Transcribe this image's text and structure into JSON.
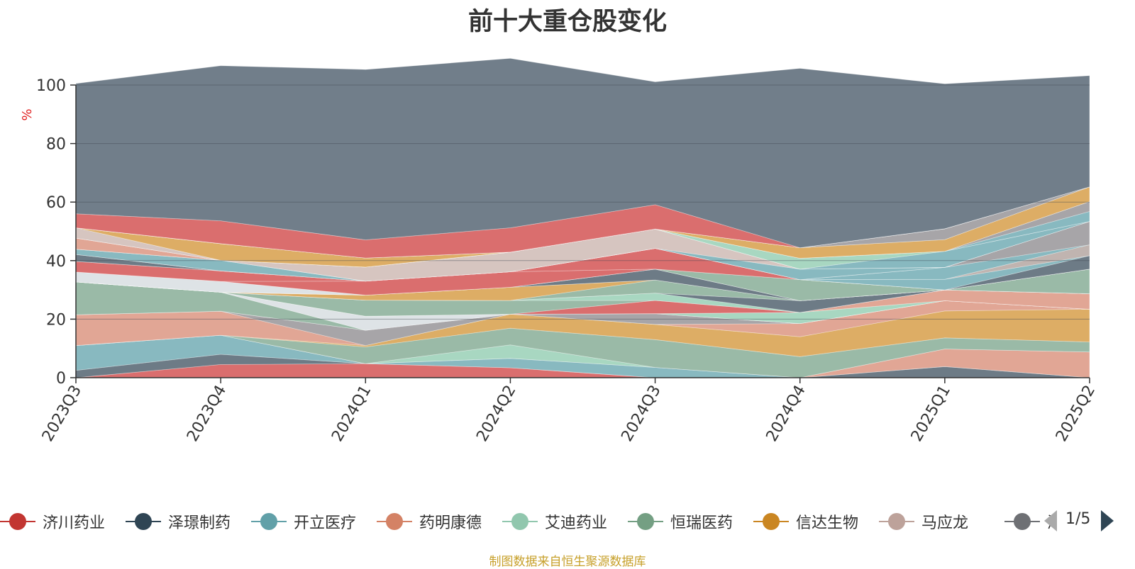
{
  "title": "前十大重仓股变化",
  "footer": "制图数据来自恒生聚源数据库",
  "colors": {
    "ylabel": "#e02020",
    "footer": "#c7a02a",
    "other_area": "#6e7b88",
    "pager_active": "#2f4554",
    "pager_inactive": "#aaaaaa"
  },
  "legend": {
    "page_text": "1/5",
    "items": [
      {
        "label": "济川药业",
        "color": "#c23531"
      },
      {
        "label": "泽璟制药",
        "color": "#2f4554"
      },
      {
        "label": "开立医疗",
        "color": "#61a0a8"
      },
      {
        "label": "药明康德",
        "color": "#d48265"
      },
      {
        "label": "艾迪药业",
        "color": "#91c7ae"
      },
      {
        "label": "恒瑞医药",
        "color": "#749f83"
      },
      {
        "label": "信达生物",
        "color": "#ca8622"
      },
      {
        "label": "马应龙",
        "color": "#bda29a"
      },
      {
        "label": "海思科",
        "color": "#6e7074"
      }
    ]
  },
  "chart_data": {
    "type": "area",
    "stacked": true,
    "ylabel": "%",
    "ylim": [
      0,
      100
    ],
    "yticks": [
      0,
      20,
      40,
      60,
      80,
      100
    ],
    "grid": true,
    "legend_position": "bottom",
    "categories": [
      "2023Q3",
      "2023Q4",
      "2024Q1",
      "2024Q2",
      "2024Q3",
      "2024Q4",
      "2025Q1",
      "2025Q2"
    ],
    "series": [
      {
        "values": [
          0,
          4.5,
          4.8,
          3.4,
          0,
          0,
          0,
          0
        ],
        "color": "#d96b6b"
      },
      {
        "values": [
          2.5,
          3.5,
          0,
          0,
          0,
          0,
          3.8,
          0
        ],
        "color": "#6a7884"
      },
      {
        "values": [
          8.5,
          6.5,
          0,
          3.2,
          3.5,
          0,
          0,
          0
        ],
        "color": "#86b8bf"
      },
      {
        "values": [
          0,
          0,
          0,
          0,
          0,
          0,
          6,
          8.8
        ],
        "color": "#e0a493"
      },
      {
        "values": [
          0,
          0,
          0,
          4.6,
          0,
          0,
          0,
          0
        ],
        "color": "#a6d6c0"
      },
      {
        "values": [
          0,
          0,
          5.7,
          5.7,
          9.5,
          7.2,
          3.8,
          3.4
        ],
        "color": "#98b9a5"
      },
      {
        "values": [
          0,
          0,
          0.5,
          4.8,
          5.2,
          6.8,
          9.2,
          11.2
        ],
        "color": "#dcab62"
      },
      {
        "values": [
          10.5,
          8.2,
          0,
          0,
          0,
          4.5,
          3.5,
          0
        ],
        "color": "#e0a493"
      },
      {
        "values": [
          0,
          0,
          5.2,
          0,
          3.7,
          0,
          0,
          0
        ],
        "color": "#a5a3a6"
      },
      {
        "values": [
          0,
          0,
          0,
          0,
          0,
          0,
          0,
          0
        ],
        "color": "#d96b6b"
      },
      {
        "values": [
          11.2,
          6.5,
          0,
          0,
          0,
          0,
          0,
          0
        ],
        "color": "#98b9a5"
      },
      {
        "values": [
          0,
          0,
          4.8,
          0,
          0,
          0,
          0,
          0
        ],
        "color": "#dde2e6"
      },
      {
        "values": [
          0,
          0,
          0,
          0,
          0,
          3.8,
          0,
          0
        ],
        "color": "#a6d6c0"
      },
      {
        "values": [
          0,
          0,
          0,
          0,
          0,
          0,
          3.7,
          5.3
        ],
        "color": "#e0a493"
      },
      {
        "values": [
          0,
          0,
          0,
          0,
          4.5,
          0,
          0,
          0
        ],
        "color": "#d96b6b"
      },
      {
        "values": [
          0,
          0,
          5.5,
          4.7,
          0,
          0,
          0,
          0
        ],
        "color": "#98b9a5"
      },
      {
        "values": [
          0,
          0,
          0,
          0,
          2.5,
          0,
          0,
          0
        ],
        "color": "#a6d6c0"
      },
      {
        "values": [
          0,
          0,
          0,
          0,
          0,
          4,
          0,
          0
        ],
        "color": "#6a7884"
      },
      {
        "values": [
          0,
          0,
          0,
          0,
          4.5,
          0,
          0,
          0
        ],
        "color": "#98b9a5"
      },
      {
        "values": [
          0,
          0,
          1.7,
          4.5,
          0,
          0,
          0,
          0
        ],
        "color": "#dcab62"
      },
      {
        "values": [
          0,
          0,
          0,
          0,
          0,
          0,
          0,
          8.4
        ],
        "color": "#98b9a5"
      },
      {
        "values": [
          0,
          0,
          0,
          0,
          3.7,
          0,
          0,
          0
        ],
        "color": "#6a7884"
      },
      {
        "values": [
          0,
          0,
          0,
          0,
          0,
          0,
          0,
          0
        ],
        "color": "#dde2e6"
      },
      {
        "values": [
          3.4,
          3.7,
          0,
          0,
          0,
          0,
          0,
          0
        ],
        "color": "#dde2e6"
      },
      {
        "values": [
          0,
          0,
          0,
          0,
          0,
          7.2,
          0,
          0
        ],
        "color": "#98b9a5"
      },
      {
        "values": [
          0,
          0,
          4.8,
          5.3,
          0,
          0,
          0,
          0
        ],
        "color": "#d96b6b"
      },
      {
        "values": [
          3.6,
          3.6,
          0,
          0,
          7.1,
          0,
          0,
          0
        ],
        "color": "#d96b6b"
      },
      {
        "values": [
          0,
          0,
          0,
          0,
          0,
          0,
          0,
          0
        ],
        "color": "#86b8bf"
      },
      {
        "values": [
          2.4,
          0,
          0,
          0,
          0,
          0,
          0,
          4.6
        ],
        "color": "#6a7884"
      },
      {
        "values": [
          0,
          0,
          0,
          0,
          0,
          0,
          3.6,
          0
        ],
        "color": "#86b8bf"
      },
      {
        "values": [
          0,
          0,
          0,
          0,
          0,
          0,
          0,
          3.7
        ],
        "color": "#bfb2ae"
      },
      {
        "values": [
          1.8,
          3.6,
          0,
          0,
          0,
          0,
          4.1,
          0
        ],
        "color": "#86b8bf"
      },
      {
        "values": [
          0,
          0,
          0,
          0,
          0,
          0,
          0,
          8
        ],
        "color": "#a5a3a6"
      },
      {
        "values": [
          0,
          0,
          0,
          0,
          0,
          3.6,
          0,
          0
        ],
        "color": "#86b8bf"
      },
      {
        "values": [
          0,
          0,
          4.8,
          6.7,
          6.6,
          0,
          0,
          0
        ],
        "color": "#d5c4bf"
      },
      {
        "values": [
          3.8,
          0,
          0,
          0,
          0,
          0,
          0,
          0
        ],
        "color": "#e0a493"
      },
      {
        "values": [
          0,
          0,
          0,
          0,
          0,
          0,
          5.5,
          0
        ],
        "color": "#86b8bf"
      },
      {
        "values": [
          0,
          0,
          0,
          0,
          0,
          3.7,
          0,
          0
        ],
        "color": "#a6d6c0"
      },
      {
        "values": [
          0,
          0,
          0,
          0,
          0,
          0,
          0,
          3.4
        ],
        "color": "#86b8bf"
      },
      {
        "values": [
          0,
          0,
          0,
          0,
          0,
          0,
          0,
          3.4
        ],
        "color": "#a5a3a6"
      },
      {
        "values": [
          3.5,
          0,
          0,
          0,
          0,
          0,
          0,
          0
        ],
        "color": "#d5c4bf"
      },
      {
        "values": [
          0,
          5.7,
          3.1,
          0,
          0,
          3.6,
          4,
          5
        ],
        "color": "#dcab62"
      },
      {
        "values": [
          0,
          0,
          0,
          0,
          0,
          0,
          0,
          0
        ],
        "color": "#a5a3a6"
      },
      {
        "values": [
          0,
          0,
          0,
          0,
          0,
          0,
          3.7,
          0
        ],
        "color": "#a5a3a6"
      },
      {
        "values": [
          0,
          0,
          0,
          0,
          0,
          0,
          0,
          0
        ],
        "color": "#bfb2ae"
      },
      {
        "values": [
          0,
          0,
          0,
          0,
          0,
          0,
          0,
          0
        ],
        "color": "#dde2e6"
      },
      {
        "values": [
          0,
          0,
          0,
          0,
          0,
          0,
          0,
          0
        ],
        "color": "#86b8bf"
      },
      {
        "values": [
          4.8,
          7.8,
          6.2,
          8.3,
          8.3,
          0,
          0,
          0
        ],
        "color": "#d96b6b"
      },
      {
        "values": [
          44.5,
          53.0,
          58.2,
          57.9,
          42.0,
          61.3,
          49.5,
          38.0
        ],
        "color": "#6e7b88"
      }
    ]
  }
}
